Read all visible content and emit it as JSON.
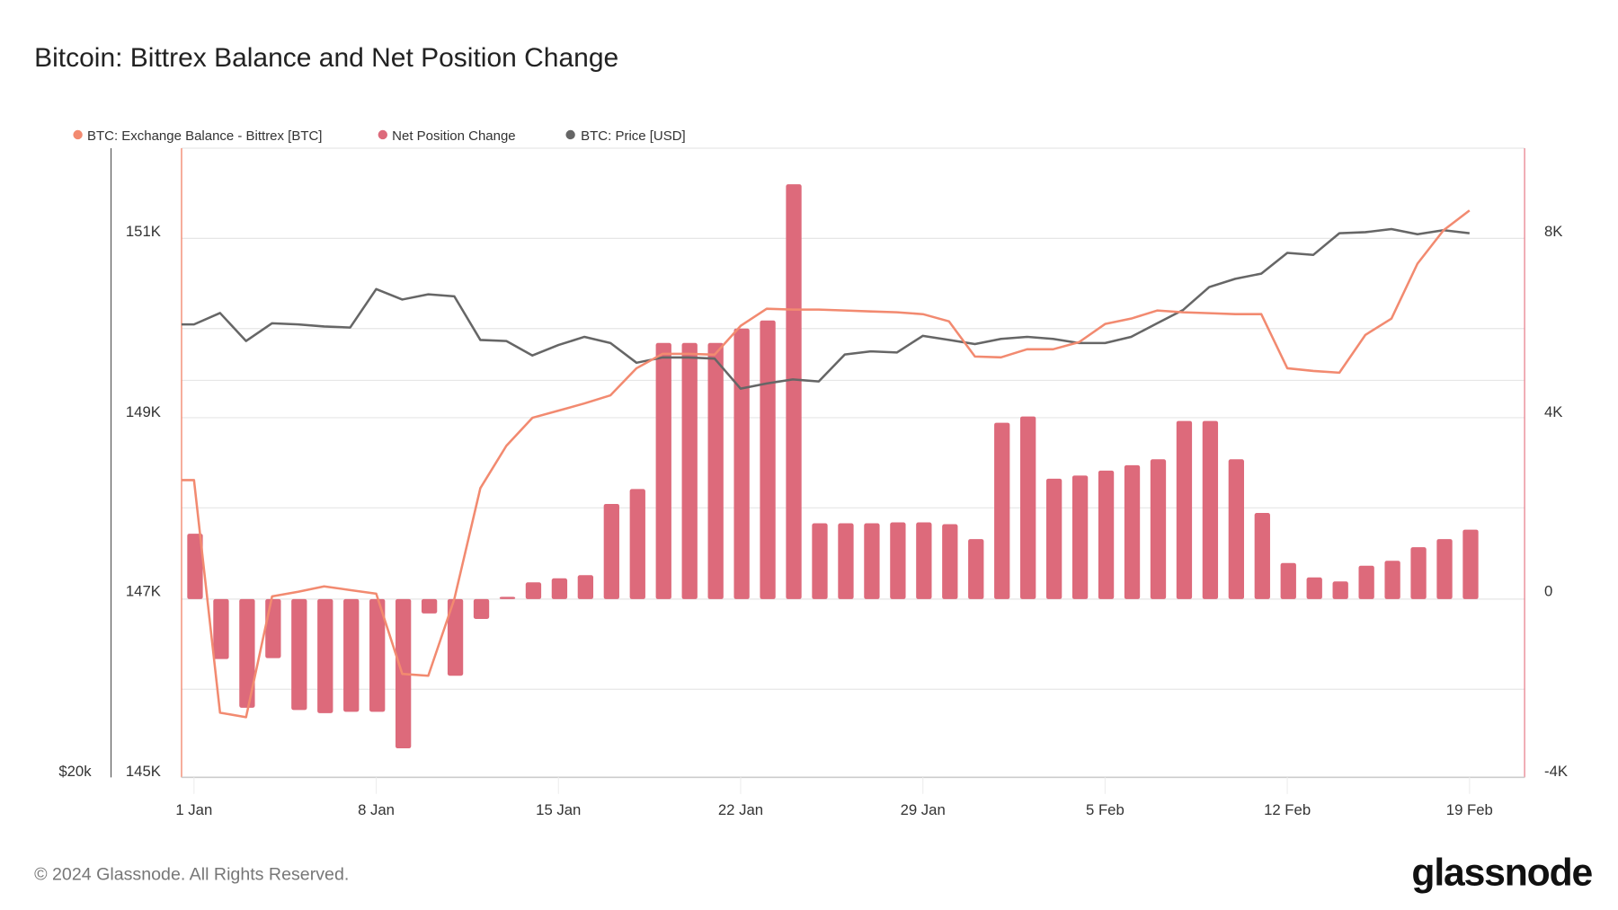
{
  "title": "Bitcoin: Bittrex Balance and Net Position Change",
  "footer": "© 2024 Glassnode. All Rights Reserved.",
  "logo": "glassnode",
  "colors": {
    "balance": "#f28a70",
    "npc": "#dd6a7b",
    "price": "#666666"
  },
  "chart_data": {
    "type": "bar+line",
    "legend_position": "top-left",
    "grid": true,
    "x_tick_labels": [
      "1 Jan",
      "8 Jan",
      "15 Jan",
      "22 Jan",
      "29 Jan",
      "5 Feb",
      "12 Feb",
      "19 Feb"
    ],
    "left_axis": {
      "tick_labels": [
        "151K",
        "149K",
        "147K",
        "145K"
      ],
      "range": [
        145000,
        152000
      ]
    },
    "price_axis": {
      "tick_labels": [
        "$20k"
      ]
    },
    "right_axis": {
      "tick_labels": [
        "8K",
        "4K",
        "0",
        "-4K"
      ],
      "range": [
        -4000,
        10000
      ]
    },
    "dates": [
      "1 Jan",
      "2 Jan",
      "3 Jan",
      "4 Jan",
      "5 Jan",
      "6 Jan",
      "7 Jan",
      "8 Jan",
      "9 Jan",
      "10 Jan",
      "11 Jan",
      "12 Jan",
      "13 Jan",
      "14 Jan",
      "15 Jan",
      "16 Jan",
      "17 Jan",
      "18 Jan",
      "19 Jan",
      "20 Jan",
      "21 Jan",
      "22 Jan",
      "23 Jan",
      "24 Jan",
      "25 Jan",
      "26 Jan",
      "27 Jan",
      "28 Jan",
      "29 Jan",
      "30 Jan",
      "31 Jan",
      "1 Feb",
      "2 Feb",
      "3 Feb",
      "4 Feb",
      "5 Feb",
      "6 Feb",
      "7 Feb",
      "8 Feb",
      "9 Feb",
      "10 Feb",
      "11 Feb",
      "12 Feb",
      "13 Feb",
      "14 Feb",
      "15 Feb",
      "16 Feb",
      "17 Feb",
      "18 Feb",
      "19 Feb"
    ],
    "series": [
      {
        "name": "BTC: Exchange Balance - Bittrex [BTC]",
        "type": "line",
        "axis": "left",
        "values": [
          148320,
          145740,
          145690,
          147030,
          147080,
          147140,
          147100,
          147060,
          146170,
          146150,
          147000,
          148230,
          148700,
          149010,
          149090,
          149170,
          149260,
          149560,
          149720,
          149720,
          149710,
          150030,
          150220,
          150210,
          150210,
          150200,
          150190,
          150180,
          150160,
          150080,
          149690,
          149680,
          149770,
          149770,
          149850,
          150050,
          150110,
          150200,
          150180,
          150170,
          150160,
          150160,
          149560,
          149530,
          149510,
          149930,
          150110,
          150720,
          151090,
          151310
        ]
      },
      {
        "name": "Net Position Change",
        "type": "bar",
        "axis": "right",
        "values": [
          1450,
          -1330,
          -2410,
          -1310,
          -2460,
          -2530,
          -2500,
          -2500,
          -3310,
          -320,
          -1700,
          -440,
          50,
          370,
          460,
          530,
          2110,
          2440,
          5680,
          5680,
          5680,
          6000,
          6180,
          9200,
          1680,
          1680,
          1680,
          1700,
          1700,
          1660,
          1330,
          3910,
          4050,
          2670,
          2740,
          2850,
          2970,
          3100,
          3950,
          3950,
          3100,
          1910,
          800,
          480,
          390,
          740,
          850,
          1150,
          1330,
          1540
        ]
      },
      {
        "name": "BTC: Price [USD]",
        "type": "line",
        "axis": "price",
        "values": [
          44200,
          45030,
          42990,
          44280,
          44200,
          44050,
          43970,
          46780,
          46020,
          46400,
          46250,
          43060,
          42990,
          41930,
          42690,
          43290,
          42840,
          41400,
          41780,
          41780,
          41700,
          39500,
          39880,
          40180,
          40030,
          42000,
          42230,
          42150,
          43370,
          43060,
          42760,
          43140,
          43290,
          43140,
          42840,
          42840,
          43290,
          44280,
          45260,
          46930,
          47530,
          47910,
          49430,
          49280,
          50870,
          50940,
          51170,
          50790,
          51090,
          50870
        ]
      }
    ]
  }
}
